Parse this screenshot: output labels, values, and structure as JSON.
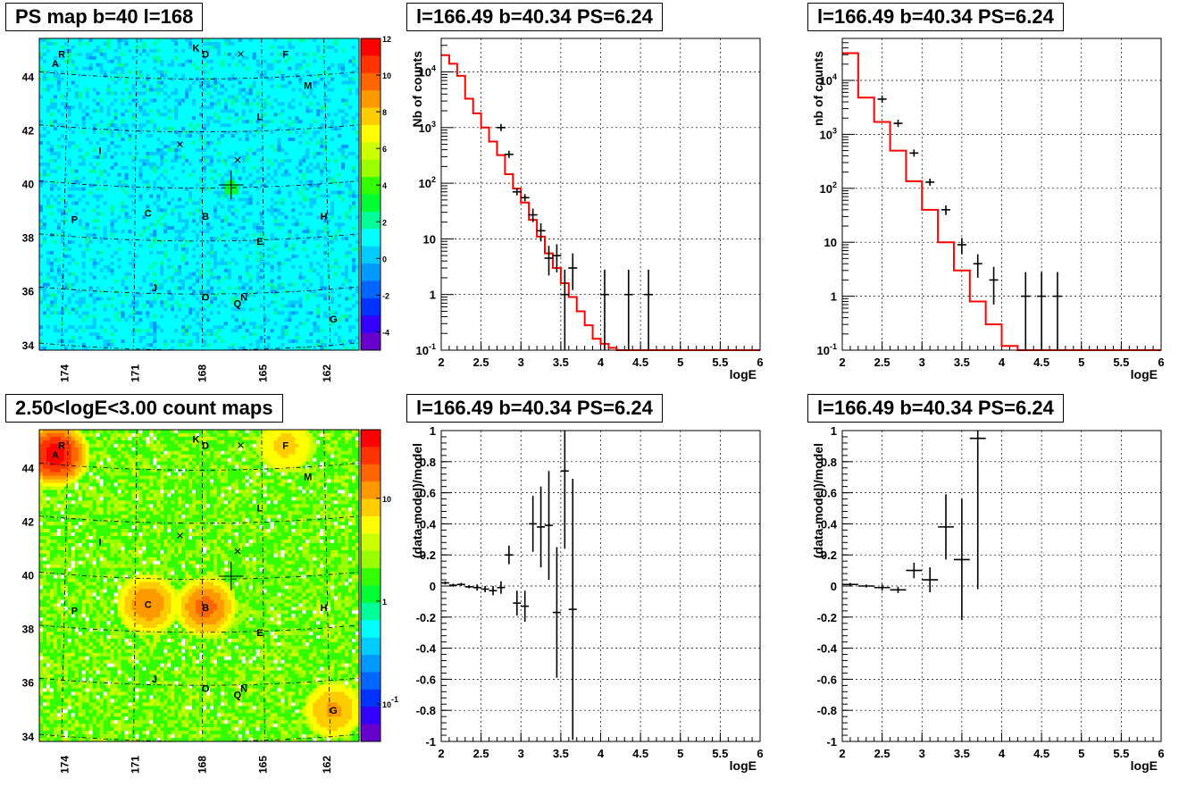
{
  "chart_data": [
    {
      "id": "map_ps",
      "type": "heatmap",
      "title": "PS map b=40 l=168",
      "x_ticks": [
        "174",
        "171",
        "168",
        "165",
        "162"
      ],
      "y_ticks": [
        "34",
        "36",
        "38",
        "40",
        "42",
        "44"
      ],
      "color_scale": "linear",
      "colorbar_ticks": [
        "12",
        "10",
        "8",
        "6",
        "4",
        "2",
        "0",
        "-2",
        "-4"
      ],
      "zrange": [
        -5,
        12
      ],
      "labels": [
        "A",
        "R",
        "K",
        "D",
        "F",
        "M",
        "L",
        "I",
        "C",
        "B",
        "H",
        "P",
        "E",
        "J",
        "O",
        "N",
        "Q",
        "G"
      ]
    },
    {
      "id": "spec_a",
      "type": "line",
      "title": "l=166.49 b=40.34 PS=6.24",
      "xlabel": "logE",
      "ylabel": "Nb of counts",
      "xlim": [
        2,
        6
      ],
      "ylim": [
        0.1,
        40000
      ],
      "yscale": "log",
      "x_ticks": [
        "2",
        "2.5",
        "3",
        "3.5",
        "4",
        "4.5",
        "5",
        "5.5",
        "6"
      ],
      "y_ticks": [
        "10^{-1}",
        "1",
        "10",
        "10^{2}",
        "10^{3}",
        "10^{4}"
      ],
      "grid": true,
      "model_step": {
        "edges": [
          2.0,
          2.1,
          2.2,
          2.3,
          2.4,
          2.5,
          2.6,
          2.7,
          2.8,
          2.9,
          3.0,
          3.1,
          3.2,
          3.3,
          3.4,
          3.5,
          3.6,
          3.7,
          3.8,
          3.9,
          4.0,
          4.1,
          4.2,
          6.0
        ],
        "values": [
          20000,
          14000,
          8500,
          3300,
          1800,
          1000,
          560,
          320,
          145,
          80,
          45,
          22,
          11,
          5.5,
          3.0,
          1.6,
          0.9,
          0.5,
          0.28,
          0.16,
          0.13,
          0.11,
          0.1
        ]
      },
      "data_points": [
        {
          "x": 2.75,
          "y": 1000
        },
        {
          "x": 2.85,
          "y": 330
        },
        {
          "x": 2.95,
          "y": 70
        },
        {
          "x": 3.05,
          "y": 55
        },
        {
          "x": 3.15,
          "y": 27,
          "lo": 20,
          "hi": 35
        },
        {
          "x": 3.25,
          "y": 14,
          "lo": 9,
          "hi": 19
        },
        {
          "x": 3.35,
          "y": 4.5,
          "lo": 2.2,
          "hi": 7.5
        },
        {
          "x": 3.45,
          "y": 5.0,
          "lo": 2.5,
          "hi": 8
        },
        {
          "x": 3.55,
          "y": 1,
          "lo": 0.1,
          "hi": 2.8
        },
        {
          "x": 3.65,
          "y": 3.0,
          "lo": 1.2,
          "hi": 5.5
        },
        {
          "x": 4.05,
          "y": 1,
          "lo": 0.1,
          "hi": 2.8
        },
        {
          "x": 4.35,
          "y": 1,
          "lo": 0.1,
          "hi": 2.8
        },
        {
          "x": 4.6,
          "y": 1,
          "lo": 0.1,
          "hi": 2.8
        }
      ]
    },
    {
      "id": "spec_b",
      "type": "line",
      "title": "l=166.49 b=40.34 PS=6.24",
      "xlabel": "logE",
      "ylabel": "nb of counts",
      "xlim": [
        2,
        6
      ],
      "ylim": [
        0.1,
        60000
      ],
      "yscale": "log",
      "x_ticks": [
        "2",
        "2.5",
        "3",
        "3.5",
        "4",
        "4.5",
        "5",
        "5.5",
        "6"
      ],
      "y_ticks": [
        "10^{-1}",
        "1",
        "10",
        "10^{2}",
        "10^{3}",
        "10^{4}"
      ],
      "grid": true,
      "model_step": {
        "edges": [
          2.0,
          2.2,
          2.4,
          2.6,
          2.8,
          3.0,
          3.2,
          3.4,
          3.6,
          3.8,
          4.0,
          4.2,
          6.0
        ],
        "values": [
          32000,
          4800,
          1700,
          500,
          135,
          40,
          10,
          3.0,
          0.8,
          0.3,
          0.12,
          0.1
        ]
      },
      "data_points": [
        {
          "x": 2.5,
          "y": 4500
        },
        {
          "x": 2.7,
          "y": 1600
        },
        {
          "x": 2.9,
          "y": 450
        },
        {
          "x": 3.1,
          "y": 130
        },
        {
          "x": 3.3,
          "y": 40,
          "lo": 32,
          "hi": 48
        },
        {
          "x": 3.5,
          "y": 9,
          "lo": 6,
          "hi": 12
        },
        {
          "x": 3.7,
          "y": 4,
          "lo": 2.2,
          "hi": 6
        },
        {
          "x": 3.9,
          "y": 2,
          "lo": 0.7,
          "hi": 3.5
        },
        {
          "x": 4.3,
          "y": 1,
          "lo": 0.1,
          "hi": 2.8
        },
        {
          "x": 4.5,
          "y": 1,
          "lo": 0.1,
          "hi": 2.8
        },
        {
          "x": 4.7,
          "y": 1,
          "lo": 0.1,
          "hi": 2.8
        }
      ]
    },
    {
      "id": "map_counts",
      "type": "heatmap",
      "title": "2.50<logE<3.00 count maps",
      "x_ticks": [
        "174",
        "171",
        "168",
        "165",
        "162"
      ],
      "y_ticks": [
        "34",
        "36",
        "38",
        "40",
        "42",
        "44"
      ],
      "color_scale": "log",
      "colorbar_ticks": [
        "10",
        "1",
        "10^{-1}"
      ],
      "labels": [
        "A",
        "R",
        "K",
        "D",
        "F",
        "M",
        "L",
        "I",
        "C",
        "B",
        "H",
        "P",
        "E",
        "J",
        "O",
        "N",
        "Q",
        "G"
      ]
    },
    {
      "id": "resid_a",
      "type": "scatter",
      "title": "l=166.49 b=40.34 PS=6.24",
      "xlabel": "logE",
      "ylabel": "(data-model)/model",
      "xlim": [
        2,
        6
      ],
      "ylim": [
        -1,
        1
      ],
      "x_ticks": [
        "2",
        "2.5",
        "3",
        "3.5",
        "4",
        "4.5",
        "5",
        "5.5",
        "6"
      ],
      "y_ticks": [
        "1",
        "0.8",
        "0.6",
        "0.4",
        "0.2",
        "0",
        "-0.2",
        "-0.4",
        "-0.6",
        "-0.8",
        "-1"
      ],
      "grid": true,
      "points": [
        {
          "x": 2.05,
          "y": 0.02,
          "e": 0.01
        },
        {
          "x": 2.15,
          "y": 0.005,
          "e": 0.01
        },
        {
          "x": 2.25,
          "y": 0.01,
          "e": 0.01
        },
        {
          "x": 2.35,
          "y": -0.005,
          "e": 0.01
        },
        {
          "x": 2.45,
          "y": -0.01,
          "e": 0.02
        },
        {
          "x": 2.55,
          "y": -0.02,
          "e": 0.02
        },
        {
          "x": 2.65,
          "y": -0.03,
          "e": 0.03
        },
        {
          "x": 2.75,
          "y": -0.01,
          "e": 0.04
        },
        {
          "x": 2.85,
          "y": 0.2,
          "e": 0.06
        },
        {
          "x": 2.95,
          "y": -0.11,
          "e": 0.08
        },
        {
          "x": 3.05,
          "y": -0.13,
          "e": 0.1
        },
        {
          "x": 3.15,
          "y": 0.4,
          "e": 0.18
        },
        {
          "x": 3.25,
          "y": 0.38,
          "e": 0.26
        },
        {
          "x": 3.35,
          "y": 0.39,
          "e": 0.35
        },
        {
          "x": 3.45,
          "y": -0.17,
          "e": 0.42
        },
        {
          "x": 3.55,
          "y": 0.74,
          "e": 0.5
        },
        {
          "x": 3.65,
          "y": -0.15,
          "e": 0.84
        }
      ]
    },
    {
      "id": "resid_b",
      "type": "scatter",
      "title": "l=166.49 b=40.34 PS=6.24",
      "xlabel": "logE",
      "ylabel": "(data-model)/model",
      "xlim": [
        2,
        6
      ],
      "ylim": [
        -1,
        1
      ],
      "x_ticks": [
        "2",
        "2.5",
        "3",
        "3.5",
        "4",
        "4.5",
        "5",
        "5.5",
        "6"
      ],
      "y_ticks": [
        "1",
        "0.8",
        "0.6",
        "0.4",
        "0.2",
        "0",
        "-0.2",
        "-0.4",
        "-0.6",
        "-0.8",
        "-1"
      ],
      "grid": true,
      "points": [
        {
          "x": 2.1,
          "y": 0.01,
          "e": 0.01
        },
        {
          "x": 2.3,
          "y": 0.0,
          "e": 0.01
        },
        {
          "x": 2.5,
          "y": -0.01,
          "e": 0.02
        },
        {
          "x": 2.7,
          "y": -0.025,
          "e": 0.02
        },
        {
          "x": 2.9,
          "y": 0.1,
          "e": 0.05
        },
        {
          "x": 3.1,
          "y": 0.04,
          "e": 0.08
        },
        {
          "x": 3.3,
          "y": 0.38,
          "e": 0.21
        },
        {
          "x": 3.5,
          "y": 0.17,
          "e": 0.39
        },
        {
          "x": 3.7,
          "y": 0.95,
          "e": 0.97
        }
      ]
    }
  ]
}
